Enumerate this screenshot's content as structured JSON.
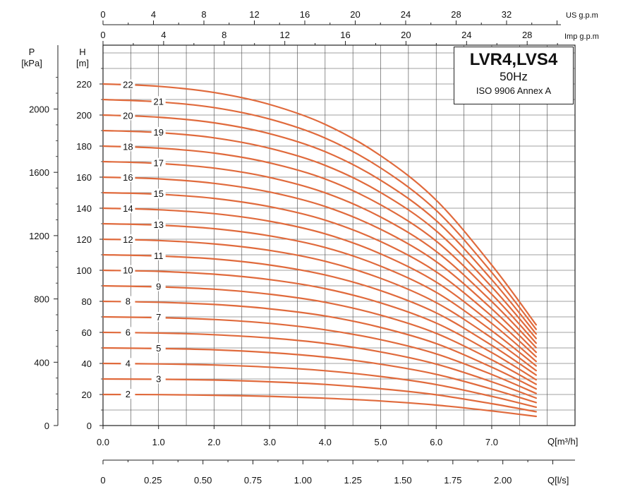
{
  "chart_data": {
    "type": "line",
    "title": "LVR4,LVS4",
    "subtitle": "50Hz",
    "standard": "ISO 9906 Annex A",
    "curve_color": "#e06a3c",
    "x_axis": {
      "label": "Q[m³/h]",
      "range": [
        0,
        8.5
      ],
      "ticks": [
        "0.0",
        "1.0",
        "2.0",
        "3.0",
        "4.0",
        "5.0",
        "6.0",
        "7.0"
      ],
      "tick_values": [
        0,
        1,
        2,
        3,
        4,
        5,
        6,
        7
      ]
    },
    "x_axis_ls": {
      "label": "Q[l/s]",
      "ticks": [
        "0",
        "0.25",
        "0.50",
        "0.75",
        "1.00",
        "1.25",
        "1.50",
        "1.75",
        "2.00"
      ],
      "tick_values": [
        0,
        0.25,
        0.5,
        0.75,
        1.0,
        1.25,
        1.5,
        1.75,
        2.0
      ]
    },
    "x_axis_us": {
      "label": "US g.p.m",
      "ticks": [
        "0",
        "4",
        "8",
        "12",
        "16",
        "20",
        "24",
        "28",
        "32"
      ],
      "tick_values": [
        0,
        4,
        8,
        12,
        16,
        20,
        24,
        28,
        32
      ]
    },
    "x_axis_imp": {
      "label": "Imp g.p.m",
      "ticks": [
        "0",
        "4",
        "8",
        "12",
        "16",
        "20",
        "24",
        "28"
      ],
      "tick_values": [
        0,
        4,
        8,
        12,
        16,
        20,
        24,
        28
      ]
    },
    "y_axis_h": {
      "label_line1": "H",
      "label_line2": "[m]",
      "range": [
        0,
        245
      ],
      "ticks": [
        "0",
        "20",
        "40",
        "60",
        "80",
        "100",
        "120",
        "140",
        "160",
        "180",
        "200",
        "220"
      ],
      "tick_values": [
        0,
        20,
        40,
        60,
        80,
        100,
        120,
        140,
        160,
        180,
        200,
        220
      ]
    },
    "y_axis_p": {
      "label_line1": "P",
      "label_line2": "[kPa]",
      "ticks": [
        "0",
        "400",
        "800",
        "1200",
        "1600",
        "2000"
      ],
      "tick_values": [
        0,
        400,
        800,
        1200,
        1600,
        2000
      ]
    },
    "q_max": 7.8,
    "curve_points_q": [
      0,
      1,
      2,
      3,
      4,
      5,
      6,
      7,
      7.8
    ],
    "series": [
      {
        "name": "2",
        "label": "2",
        "values": [
          20.0,
          19.9,
          19.5,
          18.8,
          17.6,
          15.8,
          13.2,
          9.4,
          5.9
        ]
      },
      {
        "name": "3",
        "label": "3",
        "values": [
          30.0,
          29.8,
          29.3,
          28.2,
          26.5,
          23.7,
          19.8,
          14.1,
          8.9
        ]
      },
      {
        "name": "4",
        "label": "4",
        "values": [
          40.0,
          39.7,
          39.0,
          37.6,
          35.3,
          31.6,
          26.4,
          18.8,
          11.8
        ]
      },
      {
        "name": "5",
        "label": "5",
        "values": [
          50.0,
          49.6,
          48.8,
          47.0,
          44.1,
          39.5,
          33.0,
          23.5,
          14.8
        ]
      },
      {
        "name": "6",
        "label": "6",
        "values": [
          60.0,
          59.6,
          58.5,
          56.4,
          52.9,
          47.4,
          39.6,
          28.2,
          17.7
        ]
      },
      {
        "name": "7",
        "label": "7",
        "values": [
          70.0,
          69.5,
          68.3,
          65.8,
          61.7,
          55.3,
          46.2,
          32.9,
          20.7
        ]
      },
      {
        "name": "8",
        "label": "8",
        "values": [
          80.0,
          79.4,
          78.0,
          75.2,
          70.6,
          63.2,
          52.8,
          37.6,
          23.6
        ]
      },
      {
        "name": "9",
        "label": "9",
        "values": [
          90.0,
          89.3,
          87.8,
          84.6,
          79.4,
          71.1,
          59.4,
          42.3,
          26.6
        ]
      },
      {
        "name": "10",
        "label": "10",
        "values": [
          100.0,
          99.3,
          97.5,
          94.0,
          88.2,
          79.0,
          66.0,
          47.0,
          29.5
        ]
      },
      {
        "name": "11",
        "label": "11",
        "values": [
          110.0,
          109.2,
          107.3,
          103.4,
          97.0,
          86.9,
          72.6,
          51.7,
          32.5
        ]
      },
      {
        "name": "12",
        "label": "12",
        "values": [
          120.0,
          119.2,
          117.0,
          112.8,
          105.8,
          94.8,
          79.2,
          56.4,
          35.4
        ]
      },
      {
        "name": "13",
        "label": "13",
        "values": [
          130.0,
          129.1,
          126.8,
          122.2,
          114.7,
          102.7,
          85.8,
          61.1,
          38.4
        ]
      },
      {
        "name": "14",
        "label": "14",
        "values": [
          140.0,
          139.0,
          136.5,
          131.6,
          123.5,
          110.6,
          92.4,
          65.8,
          41.3
        ]
      },
      {
        "name": "15",
        "label": "15",
        "values": [
          150.0,
          149.0,
          146.3,
          141.0,
          132.3,
          118.5,
          99.0,
          70.5,
          44.3
        ]
      },
      {
        "name": "16",
        "label": "16",
        "values": [
          160.0,
          158.9,
          156.0,
          150.4,
          141.1,
          126.4,
          105.6,
          75.2,
          47.2
        ]
      },
      {
        "name": "17",
        "label": "17",
        "values": [
          170.0,
          168.8,
          165.8,
          159.8,
          149.9,
          134.3,
          112.2,
          79.9,
          50.2
        ]
      },
      {
        "name": "18",
        "label": "18",
        "values": [
          180.0,
          178.7,
          175.5,
          169.2,
          158.8,
          142.2,
          118.8,
          84.6,
          53.1
        ]
      },
      {
        "name": "19",
        "label": "19",
        "values": [
          190.0,
          188.7,
          185.3,
          178.6,
          167.6,
          150.1,
          125.4,
          89.3,
          56.1
        ]
      },
      {
        "name": "20",
        "label": "20",
        "values": [
          200.0,
          198.6,
          195.0,
          188.0,
          176.4,
          158.0,
          132.0,
          94.0,
          59.0
        ]
      },
      {
        "name": "21",
        "label": "21",
        "values": [
          210.0,
          208.5,
          204.8,
          197.4,
          185.2,
          165.9,
          138.6,
          98.7,
          62.0
        ]
      },
      {
        "name": "22",
        "label": "22",
        "values": [
          220.0,
          218.5,
          214.5,
          206.8,
          194.0,
          173.8,
          145.2,
          103.4,
          64.9
        ]
      }
    ]
  }
}
